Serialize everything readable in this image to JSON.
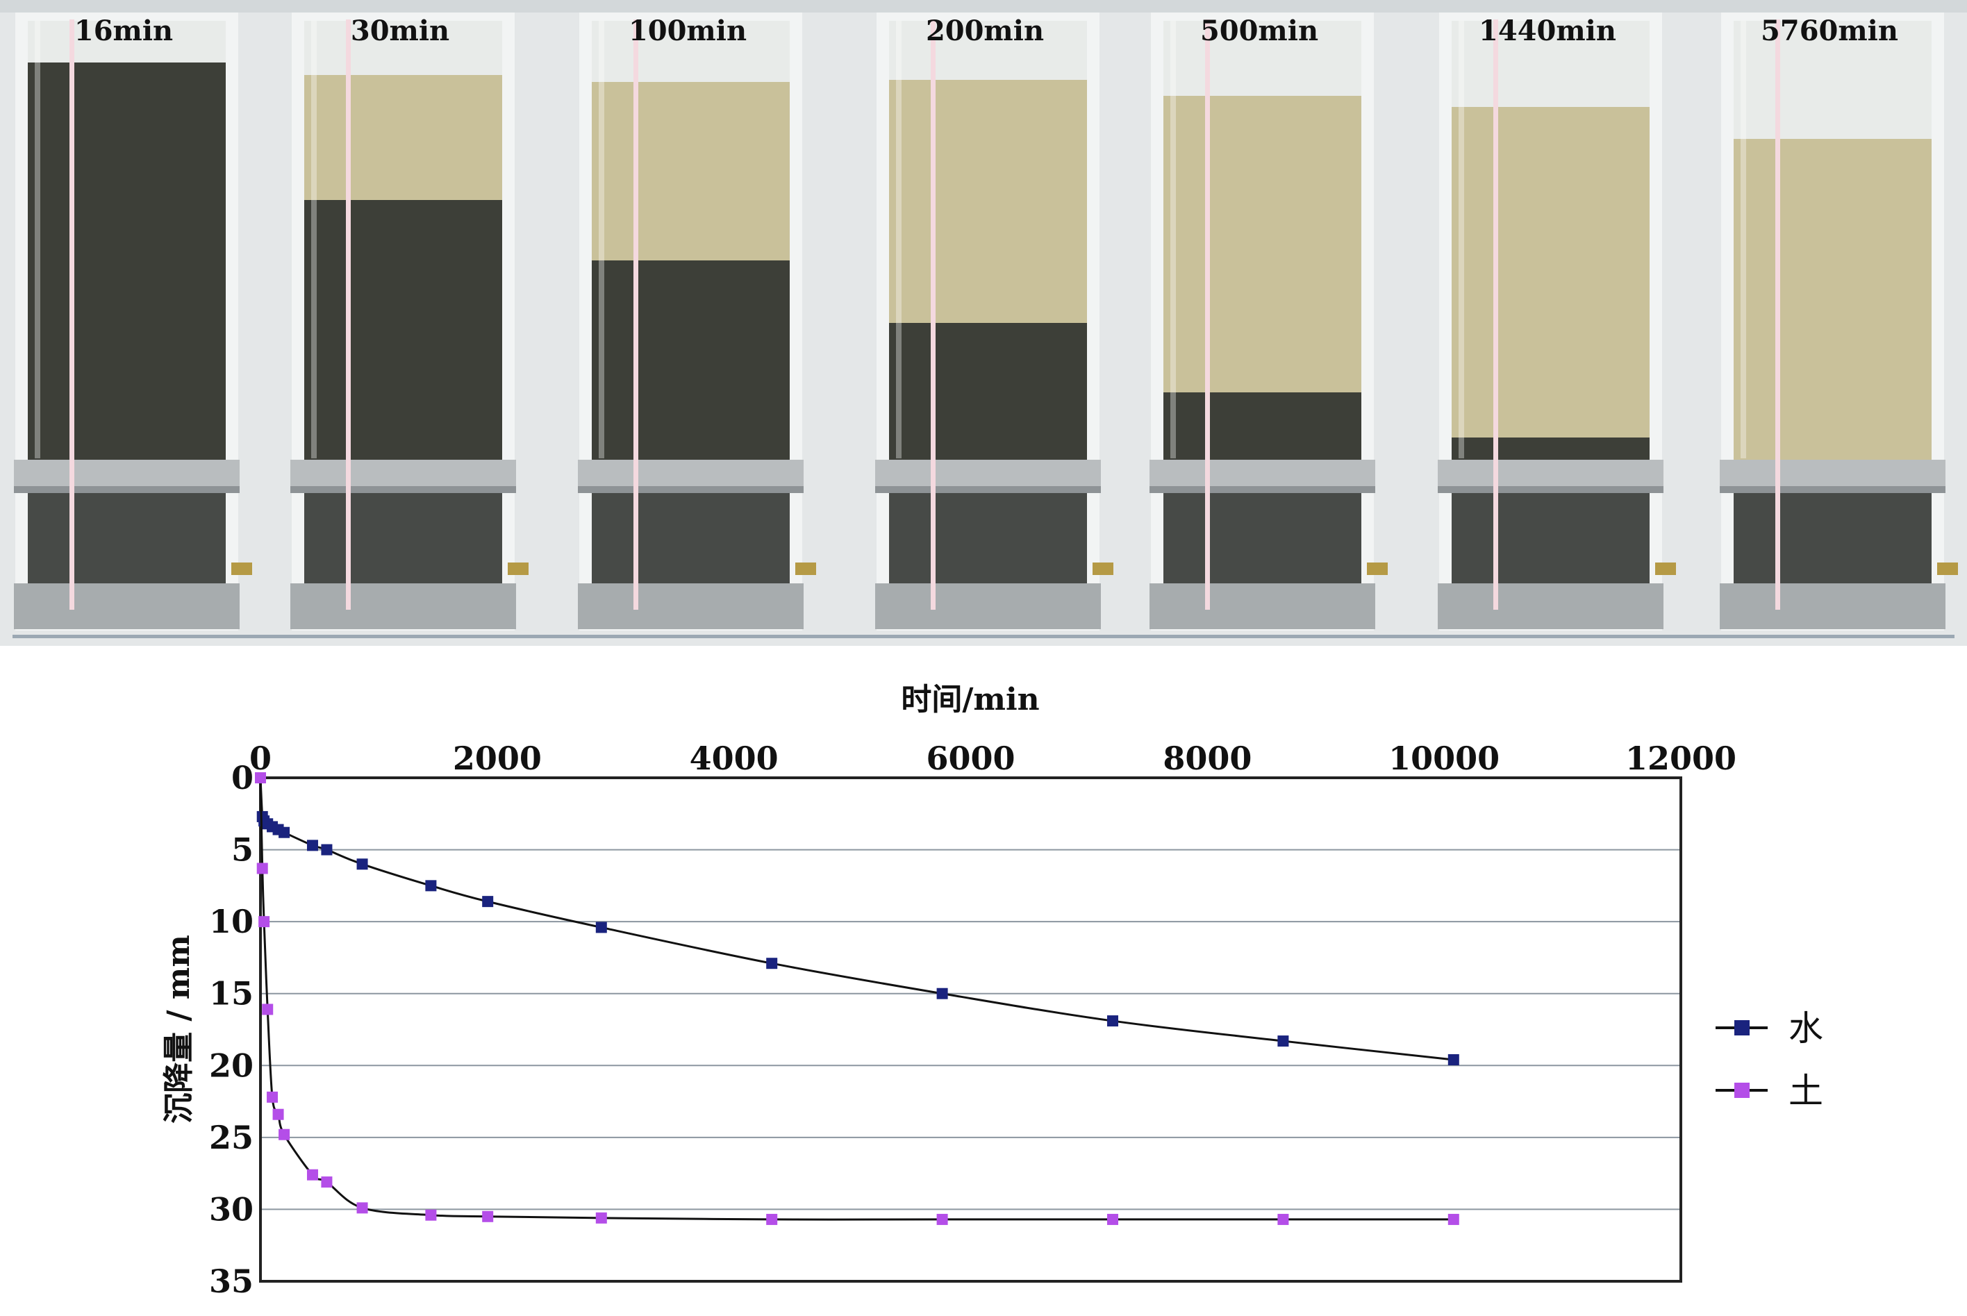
{
  "photo": {
    "tube_labels": [
      "16min",
      "30min",
      "100min",
      "200min",
      "500min",
      "1440min",
      "5760min"
    ],
    "clear_water_color": "#c9c19a",
    "sediment_color": "#3d3f38"
  },
  "chart_data": {
    "type": "line",
    "xlabel": "时间/min",
    "ylabel": "沉降量 / mm",
    "xlim": [
      0,
      12000
    ],
    "ylim": [
      0,
      35
    ],
    "y_inverted": true,
    "x_axis_position": "top",
    "xticks": [
      0,
      2000,
      4000,
      6000,
      8000,
      10000,
      12000
    ],
    "yticks": [
      0,
      5,
      10,
      15,
      20,
      25,
      30,
      35
    ],
    "grid": "horizontal",
    "legend_position": "right",
    "series": [
      {
        "name": "水",
        "color": "#1a237e",
        "marker": "square",
        "x": [
          0,
          16,
          30,
          60,
          100,
          150,
          200,
          440,
          560,
          860,
          1440,
          1920,
          2880,
          4320,
          5760,
          7200,
          8640,
          10080
        ],
        "y": [
          0,
          2.7,
          3.0,
          3.2,
          3.4,
          3.6,
          3.8,
          4.7,
          5.0,
          6.0,
          7.5,
          8.6,
          10.4,
          12.9,
          15.0,
          16.9,
          18.3,
          19.6
        ]
      },
      {
        "name": "土",
        "color": "#b44ee8",
        "marker": "square",
        "x": [
          0,
          16,
          30,
          60,
          100,
          150,
          200,
          440,
          560,
          860,
          1440,
          1920,
          2880,
          4320,
          5760,
          7200,
          8640,
          10080
        ],
        "y": [
          0,
          6.3,
          10.0,
          16.1,
          22.2,
          23.4,
          24.8,
          27.6,
          28.1,
          29.9,
          30.4,
          30.5,
          30.6,
          30.7,
          30.7,
          30.7,
          30.7,
          30.7
        ]
      }
    ]
  }
}
